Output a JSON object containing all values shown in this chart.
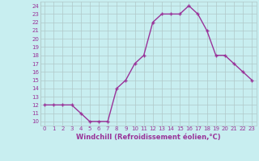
{
  "x": [
    0,
    1,
    2,
    3,
    4,
    5,
    6,
    7,
    8,
    9,
    10,
    11,
    12,
    13,
    14,
    15,
    16,
    17,
    18,
    19,
    20,
    21,
    22,
    23
  ],
  "y": [
    12,
    12,
    12,
    12,
    11,
    10,
    10,
    10,
    14,
    15,
    17,
    18,
    22,
    23,
    23,
    23,
    24,
    23,
    21,
    18,
    18,
    17,
    16,
    15
  ],
  "line_color": "#993399",
  "marker": "+",
  "marker_size": 3,
  "bg_color": "#c8eef0",
  "grid_color": "#b0c8c8",
  "xlabel": "Windchill (Refroidissement éolien,°C)",
  "xlabel_color": "#993399",
  "tick_color": "#993399",
  "xlim": [
    -0.5,
    23.5
  ],
  "ylim": [
    9.5,
    24.5
  ],
  "yticks": [
    10,
    11,
    12,
    13,
    14,
    15,
    16,
    17,
    18,
    19,
    20,
    21,
    22,
    23,
    24
  ],
  "xticks": [
    0,
    1,
    2,
    3,
    4,
    5,
    6,
    7,
    8,
    9,
    10,
    11,
    12,
    13,
    14,
    15,
    16,
    17,
    18,
    19,
    20,
    21,
    22,
    23
  ],
  "linewidth": 1.0,
  "tick_fontsize": 5.0,
  "xlabel_fontsize": 6.0
}
